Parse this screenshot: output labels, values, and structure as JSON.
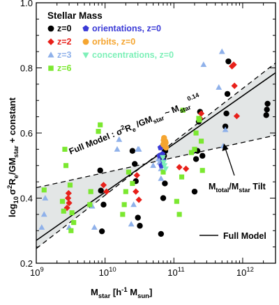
{
  "chart_data": {
    "type": "scatter",
    "title": "Stellar Mass",
    "xscale": "log",
    "xlim": [
      1000000000,
      3000000000000
    ],
    "ylim": [
      0.2,
      1.0
    ],
    "x_ticks": [
      {
        "value": 1000000000,
        "base": "10",
        "exp": "9"
      },
      {
        "value": 10000000000,
        "base": "10",
        "exp": "10"
      },
      {
        "value": 100000000000,
        "base": "10",
        "exp": "11"
      },
      {
        "value": 1000000000000,
        "base": "10",
        "exp": "12"
      }
    ],
    "y_ticks": [
      "0.2",
      "0.4",
      "0.6",
      "0.8",
      "1.0"
    ],
    "y_tick_values": [
      0.2,
      0.4,
      0.6,
      0.8,
      1.0
    ],
    "xlabel": {
      "main": "M",
      "sub": "star",
      "units_open": " [h",
      "units_exp": "-1",
      "units_m": " M",
      "units_sub": "sun",
      "units_close": "]"
    },
    "ylabel": {
      "log": "log",
      "log_sub": "10",
      "sigma": "σ",
      "sigma_exp": "2",
      "R": "R",
      "R_sub": "e",
      "GM": "/GM",
      "GM_sub": "star",
      "rest": " + constant"
    },
    "legend": [
      {
        "label": "z=0",
        "color": "#000000",
        "marker": "circle"
      },
      {
        "label": "z=2",
        "color": "#e8201a",
        "marker": "diamond"
      },
      {
        "label": "z=3",
        "color": "#8fb1ea",
        "marker": "triangle"
      },
      {
        "label": "z=6",
        "color": "#7be830",
        "marker": "square"
      },
      {
        "label": "orientations, z=0",
        "color": "#3a3ad6",
        "marker": "pentagon"
      },
      {
        "label": "orbits, z=0",
        "color": "#f5a530",
        "marker": "circle"
      },
      {
        "label": "concentrations, z=0",
        "color": "#7df0b8",
        "marker": "triangle-down"
      }
    ],
    "annotations": {
      "full_model_line": "Full Model : σ",
      "full_model_line_exp1": "2",
      "full_model_line_mid": "R",
      "full_model_line_sub1": "e",
      "full_model_line_gm": " /GM",
      "full_model_line_sub2": "star",
      "full_model_line_sim": " ~ M",
      "full_model_line_sub3": "star",
      "full_model_line_exp2": "0.14",
      "tilt_m1": "M",
      "tilt_sub1": "total",
      "tilt_slash": "/M",
      "tilt_sub2": "star",
      "tilt_word": " Tilt",
      "full_model_legend": "Full Model"
    },
    "model_line": {
      "x": [
        1000000000,
        3000000000000
      ],
      "y": [
        0.27,
        0.785
      ]
    },
    "band_upper": {
      "x": [
        1000000000,
        3000000000000
      ],
      "y": [
        0.245,
        0.815
      ]
    },
    "band_lower": {
      "x": [
        1000000000,
        3000000000000
      ],
      "y": [
        0.432,
        0.593
      ]
    },
    "series": [
      {
        "name": "z=0",
        "color": "#000000",
        "marker": "circle",
        "points": [
          [
            8500000000,
            0.485
          ],
          [
            8700000000,
            0.423
          ],
          [
            9000000000,
            0.298
          ],
          [
            9500000000,
            0.38
          ],
          [
            25000000000,
            0.545
          ],
          [
            27000000000,
            0.505
          ],
          [
            28000000000,
            0.452
          ],
          [
            30000000000,
            0.34
          ],
          [
            32000000000,
            0.315
          ],
          [
            65000000000,
            0.29
          ],
          [
            70000000000,
            0.4
          ],
          [
            70000000000,
            0.52
          ],
          [
            72000000000,
            0.53
          ],
          [
            75000000000,
            0.545
          ],
          [
            74000000000,
            0.445
          ],
          [
            200000000000,
            0.42
          ],
          [
            210000000000,
            0.52
          ],
          [
            220000000000,
            0.545
          ],
          [
            230000000000,
            0.635
          ],
          [
            240000000000,
            0.665
          ],
          [
            260000000000,
            0.53
          ],
          [
            560000000000,
            0.62
          ],
          [
            580000000000,
            0.66
          ],
          [
            600000000000,
            0.72
          ],
          [
            620000000000,
            0.82
          ],
          [
            2200000000000,
            0.655
          ],
          [
            2250000000000,
            0.672
          ],
          [
            2300000000000,
            0.69
          ]
        ]
      },
      {
        "name": "z=2",
        "color": "#e8201a",
        "marker": "diamond",
        "points": [
          [
            2800000000,
            0.37
          ],
          [
            2900000000,
            0.4
          ],
          [
            2950000000,
            0.415
          ],
          [
            3000000000,
            0.385
          ],
          [
            9500000000,
            0.44
          ],
          [
            10500000000,
            0.42
          ],
          [
            28000000000,
            0.42
          ],
          [
            29000000000,
            0.47
          ],
          [
            31000000000,
            0.395
          ],
          [
            120000000000,
            0.495
          ],
          [
            150000000000,
            0.49
          ],
          [
            240000000000,
            0.645
          ],
          [
            250000000000,
            0.66
          ],
          [
            700000000000,
            0.805
          ],
          [
            740000000000,
            0.81
          ],
          [
            760000000000,
            0.745
          ],
          [
            820000000000,
            0.652
          ]
        ]
      },
      {
        "name": "z=3",
        "color": "#8fb1ea",
        "marker": "triangle",
        "points": [
          [
            1200000000,
            0.31
          ],
          [
            1300000000,
            0.35
          ],
          [
            1350000000,
            0.4
          ],
          [
            3000000000,
            0.31
          ],
          [
            6500000000,
            0.375
          ],
          [
            7000000000,
            0.31
          ],
          [
            15000000000,
            0.55
          ],
          [
            16000000000,
            0.58
          ],
          [
            24000000000,
            0.32
          ],
          [
            26000000000,
            0.38
          ],
          [
            30000000000,
            0.55
          ],
          [
            31000000000,
            0.55
          ],
          [
            50000000000,
            0.5
          ],
          [
            60000000000,
            0.52
          ],
          [
            62000000000,
            0.51
          ],
          [
            65000000000,
            0.49
          ],
          [
            68000000000,
            0.53
          ],
          [
            65000000000,
            0.46
          ],
          [
            270000000000,
            0.81
          ],
          [
            450000000000,
            0.74
          ],
          [
            500000000000,
            0.85
          ],
          [
            520000000000,
            0.56
          ],
          [
            560000000000,
            0.61
          ]
        ]
      },
      {
        "name": "z=6",
        "color": "#7be830",
        "marker": "square",
        "points": [
          [
            1300000000,
            0.425
          ],
          [
            2400000000,
            0.39
          ],
          [
            2500000000,
            0.36
          ],
          [
            2600000000,
            0.55
          ],
          [
            2700000000,
            0.5
          ],
          [
            3100000000,
            0.44
          ],
          [
            3200000000,
            0.3
          ],
          [
            3300000000,
            0.355
          ],
          [
            3500000000,
            0.325
          ],
          [
            6000000000,
            0.38
          ],
          [
            6200000000,
            0.42
          ],
          [
            8000000000,
            0.605
          ],
          [
            8500000000,
            0.625
          ],
          [
            18000000000,
            0.35
          ],
          [
            19000000000,
            0.38
          ],
          [
            20000000000,
            0.42
          ],
          [
            22000000000,
            0.48
          ],
          [
            25000000000,
            0.445
          ],
          [
            70000000000,
            0.48
          ],
          [
            110000000000,
            0.39
          ],
          [
            120000000000,
            0.35
          ],
          [
            130000000000,
            0.465
          ],
          [
            135000000000,
            0.67
          ],
          [
            180000000000,
            0.54
          ],
          [
            200000000000,
            0.55
          ],
          [
            210000000000,
            0.6
          ],
          [
            230000000000,
            0.645
          ],
          [
            235000000000,
            0.64
          ],
          [
            250000000000,
            0.575
          ],
          [
            260000000000,
            0.485
          ]
        ]
      },
      {
        "name": "orientations, z=0",
        "color": "#3a3ad6",
        "marker": "pentagon",
        "points": [
          [
            62000000000,
            0.53
          ],
          [
            64000000000,
            0.555
          ],
          [
            66000000000,
            0.5
          ],
          [
            68000000000,
            0.535
          ],
          [
            70000000000,
            0.515
          ]
        ]
      },
      {
        "name": "orbits, z=0",
        "color": "#f5a530",
        "marker": "circle",
        "points": [
          [
            70000000000,
            0.565
          ],
          [
            71000000000,
            0.578
          ],
          [
            72000000000,
            0.585
          ],
          [
            73000000000,
            0.572
          ],
          [
            74000000000,
            0.56
          ],
          [
            75000000000,
            0.575
          ],
          [
            76000000000,
            0.57
          ],
          [
            77000000000,
            0.555
          ]
        ]
      },
      {
        "name": "concentrations, z=0",
        "color": "#7df0b8",
        "marker": "triangle-down",
        "points": [
          [
            69000000000,
            0.525
          ],
          [
            71000000000,
            0.51
          ],
          [
            73000000000,
            0.5
          ],
          [
            76000000000,
            0.49
          ]
        ]
      }
    ]
  }
}
